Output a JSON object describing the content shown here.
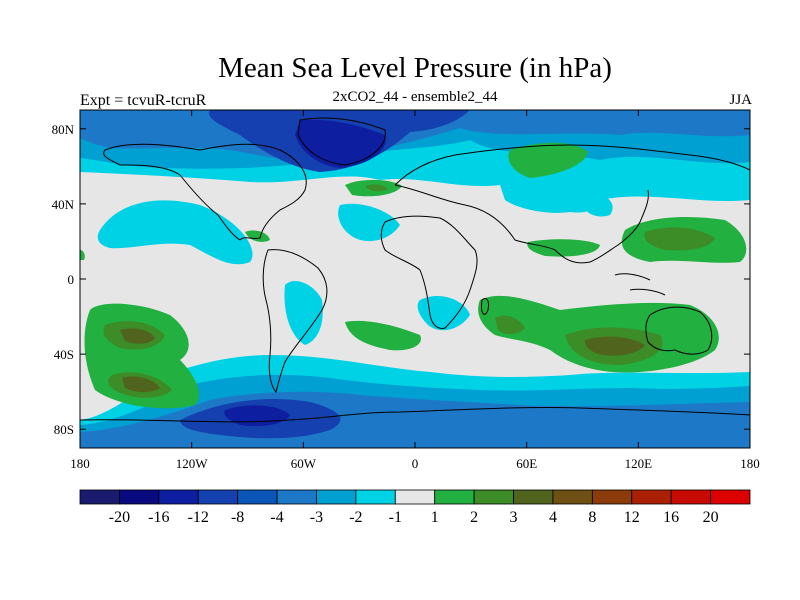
{
  "header": {
    "title": "Mean Sea Level Pressure (in hPa)",
    "left_label": "Expt = tcvuR-tcruR",
    "center_label": "2xCO2_44 - ensemble2_44",
    "right_label": "JJA"
  },
  "map": {
    "projection": "cylindrical-equidistant",
    "lon_range": [
      -180,
      180
    ],
    "lat_range": [
      -90,
      90
    ],
    "x_ticks": [
      {
        "lon": -180,
        "label": "180"
      },
      {
        "lon": -120,
        "label": "120W"
      },
      {
        "lon": -60,
        "label": "60W"
      },
      {
        "lon": 0,
        "label": "0"
      },
      {
        "lon": 60,
        "label": "60E"
      },
      {
        "lon": 120,
        "label": "120E"
      },
      {
        "lon": 180,
        "label": "180"
      }
    ],
    "y_ticks": [
      {
        "lat": 80,
        "label": "80N"
      },
      {
        "lat": 40,
        "label": "40N"
      },
      {
        "lat": 0,
        "label": "0"
      },
      {
        "lat": -40,
        "label": "40S"
      },
      {
        "lat": -80,
        "label": "80S"
      }
    ],
    "background_color": "#e6e6e6"
  },
  "colorbar": {
    "colors": [
      "#1a1a6e",
      "#0a0a80",
      "#0d1fa0",
      "#1540b0",
      "#0a55b5",
      "#1e78c8",
      "#00a0d2",
      "#00d2e6",
      "#e6e6e6",
      "#22b040",
      "#3c8c28",
      "#50641e",
      "#6e5014",
      "#8c3c0a",
      "#aa2005",
      "#c80a05",
      "#dc0000"
    ],
    "labels": [
      "-20",
      "-16",
      "-12",
      "-8",
      "-4",
      "-3",
      "-2",
      "-1",
      "1",
      "2",
      "3",
      "4",
      "8",
      "12",
      "16",
      "20"
    ]
  }
}
